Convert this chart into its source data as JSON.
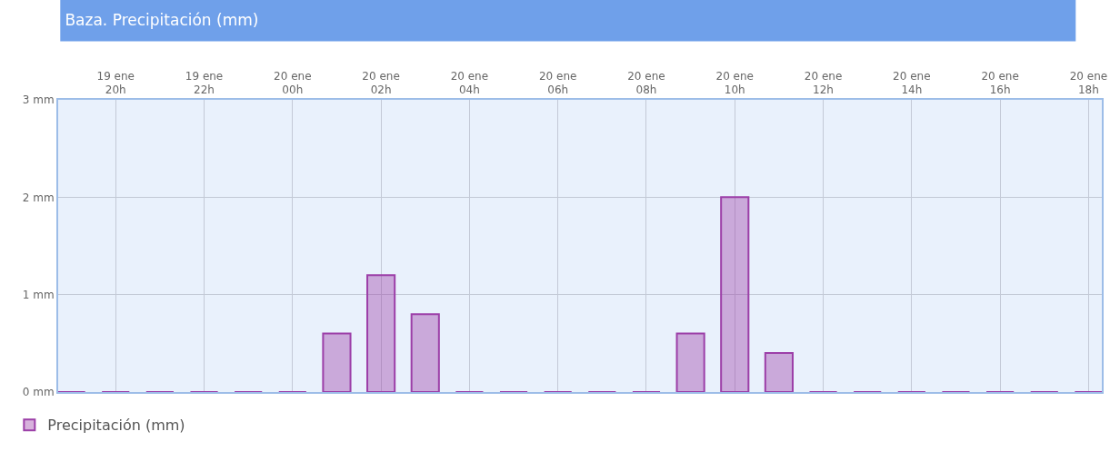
{
  "chart_data": {
    "type": "bar",
    "title": "Baza. Precipitación (mm)",
    "categories": [
      null,
      "19 ene\n20h",
      null,
      "19 ene\n22h",
      null,
      "20 ene\n00h",
      null,
      "20 ene\n02h",
      null,
      "20 ene\n04h",
      null,
      "20 ene\n06h",
      null,
      "20 ene\n08h",
      null,
      "20 ene\n10h",
      null,
      "20 ene\n12h",
      null,
      "20 ene\n14h",
      null,
      "20 ene\n16h",
      null,
      "20 ene\n18h"
    ],
    "series": [
      {
        "name": "Precipitación (mm)",
        "color": "#9c3fa8",
        "values": [
          0,
          0,
          0,
          0,
          0,
          0,
          0.6,
          1.2,
          0.8,
          0,
          0,
          0,
          0,
          0,
          0.6,
          2,
          0.4,
          0,
          0,
          0,
          0,
          0,
          0,
          0
        ]
      }
    ],
    "ylim": [
      0,
      3
    ],
    "yticks": [
      {
        "value": 0,
        "label": "0 mm"
      },
      {
        "value": 1,
        "label": "1 mm"
      },
      {
        "value": 2,
        "label": "2 mm"
      },
      {
        "value": 3,
        "label": "3 mm"
      }
    ],
    "grid": true,
    "legend": "bottom left"
  }
}
